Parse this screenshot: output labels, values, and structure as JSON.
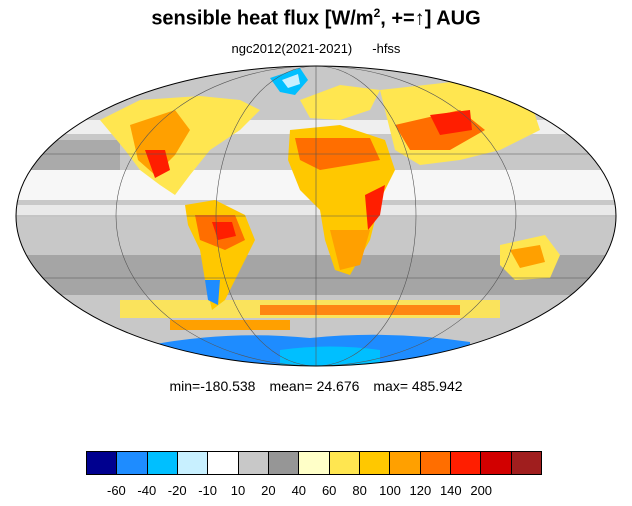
{
  "title": {
    "text_pre": "sensible heat flux [W/m",
    "sup": "2",
    "text_mid": ", +=",
    "arrow": "↑",
    "text_post": "]  AUG"
  },
  "subtitle": {
    "model": "ngc2012(2021-2021)",
    "variable": "-hfss"
  },
  "stats": {
    "min": "min=-180.538",
    "mean": "mean=  24.676",
    "max": "max= 485.942"
  },
  "colorbar": {
    "colors": [
      "#00008f",
      "#1e8cff",
      "#00bfff",
      "#c8f0ff",
      "#ffffff",
      "#c8c8c8",
      "#969696",
      "#ffffc8",
      "#ffe650",
      "#ffc800",
      "#ffa000",
      "#ff6e00",
      "#ff1e00",
      "#d20000",
      "#a01e1e"
    ],
    "labels": [
      "-60",
      "-40",
      "-20",
      "-10",
      "10",
      "20",
      "40",
      "60",
      "80",
      "100",
      "120",
      "140",
      "200"
    ]
  },
  "map": {
    "projection": "Mollweide",
    "ocean_color": "#c8c8c8",
    "land_colors": {
      "hot": "#ff6e00",
      "warm": "#ffc800",
      "mild": "#ffe650",
      "extreme": "#ff1e00"
    },
    "ice_color": "#1e8cff"
  }
}
